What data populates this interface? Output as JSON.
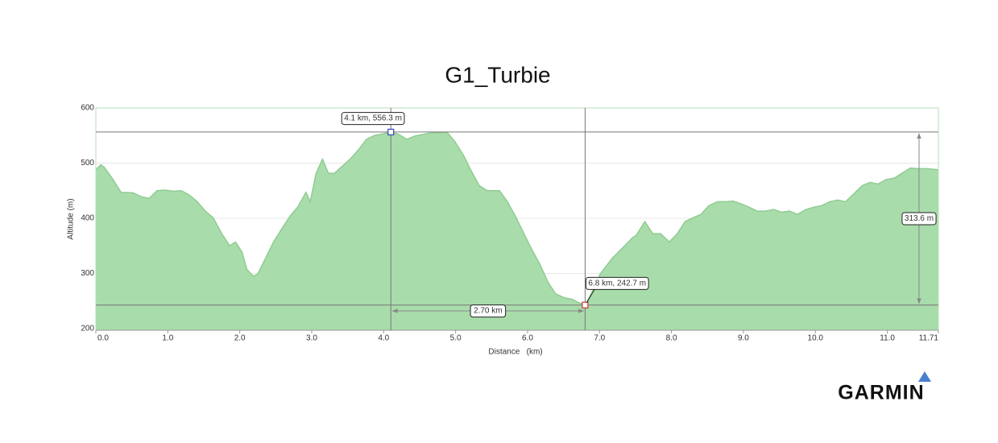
{
  "chart_data": {
    "type": "area",
    "title": "G1_Turbie",
    "x_label": "Distance   (km)",
    "y_label": "Altitude (m)",
    "color": "#a9dcab",
    "line_color": "#8fcc92",
    "grid": true,
    "xlim": [
      0,
      11.71
    ],
    "ylim": [
      197,
      600
    ],
    "xticks": [
      {
        "value": 0,
        "label": "0.0"
      },
      {
        "value": 1,
        "label": "1.0"
      },
      {
        "value": 2,
        "label": "2.0"
      },
      {
        "value": 3,
        "label": "3.0"
      },
      {
        "value": 4,
        "label": "4.0"
      },
      {
        "value": 5,
        "label": "5.0"
      },
      {
        "value": 6,
        "label": "6.0"
      },
      {
        "value": 7,
        "label": "7.0"
      },
      {
        "value": 8,
        "label": "8.0"
      },
      {
        "value": 9,
        "label": "9.0"
      },
      {
        "value": 10,
        "label": "10.0"
      },
      {
        "value": 11,
        "label": "11.0"
      },
      11.71
    ],
    "yticks": [
      200,
      300,
      400,
      500,
      600
    ],
    "x": [
      0,
      0.07,
      0.12,
      0.24,
      0.35,
      0.52,
      0.63,
      0.74,
      0.85,
      0.96,
      1.08,
      1.19,
      1.3,
      1.41,
      1.52,
      1.63,
      1.75,
      1.86,
      1.94,
      2.03,
      2.1,
      2.19,
      2.25,
      2.36,
      2.47,
      2.59,
      2.7,
      2.81,
      2.92,
      2.98,
      3.06,
      3.15,
      3.23,
      3.31,
      3.43,
      3.54,
      3.65,
      3.76,
      3.87,
      3.99,
      4.1,
      4.21,
      4.32,
      4.43,
      4.55,
      4.66,
      4.77,
      4.88,
      4.99,
      5.11,
      5.22,
      5.33,
      5.44,
      5.61,
      5.72,
      5.83,
      5.95,
      6.06,
      6.17,
      6.28,
      6.39,
      6.51,
      6.62,
      6.71,
      6.8,
      6.9,
      7.01,
      7.18,
      7.35,
      7.46,
      7.51,
      7.63,
      7.74,
      7.85,
      7.97,
      8.08,
      8.19,
      8.3,
      8.41,
      8.52,
      8.64,
      8.75,
      8.86,
      8.97,
      9.08,
      9.19,
      9.31,
      9.42,
      9.53,
      9.64,
      9.75,
      9.87,
      9.98,
      10.09,
      10.2,
      10.31,
      10.42,
      10.54,
      10.65,
      10.76,
      10.87,
      10.98,
      11.1,
      11.21,
      11.32,
      11.43,
      11.54,
      11.71
    ],
    "values": [
      488,
      497,
      492,
      470,
      447,
      446,
      439,
      436,
      450,
      451,
      449,
      450,
      442,
      430,
      413,
      401,
      372,
      350,
      357,
      339,
      307,
      295,
      299,
      328,
      357,
      382,
      404,
      421,
      447,
      430,
      481,
      507,
      482,
      481,
      495,
      508,
      524,
      543,
      550,
      553,
      556.3,
      552,
      543,
      549,
      552,
      555,
      555,
      556,
      539,
      514,
      485,
      459,
      450,
      450,
      430,
      404,
      372,
      343,
      317,
      285,
      263,
      256,
      253,
      247,
      242.7,
      267,
      299,
      328,
      350,
      365,
      369,
      394,
      372,
      372,
      357,
      372,
      394,
      401,
      407,
      423,
      430,
      430,
      431,
      426,
      420,
      413,
      413,
      416,
      411,
      413,
      407,
      416,
      420,
      423,
      430,
      433,
      430,
      445,
      459,
      465,
      462,
      470,
      473,
      482,
      491,
      490,
      490,
      488
    ],
    "markers": [
      {
        "x": 4.1,
        "y": 556.3,
        "label": "4.1 km, 556.3 m",
        "color": "#2f45b0"
      },
      {
        "x": 6.8,
        "y": 242.7,
        "label": "6.8 km, 242.7 m",
        "color": "#d23a3a"
      }
    ],
    "measurements": [
      {
        "axis": "x",
        "label": "2.70 km"
      },
      {
        "axis": "y",
        "label": "313.6 m"
      }
    ],
    "logo": "GARMIN"
  }
}
